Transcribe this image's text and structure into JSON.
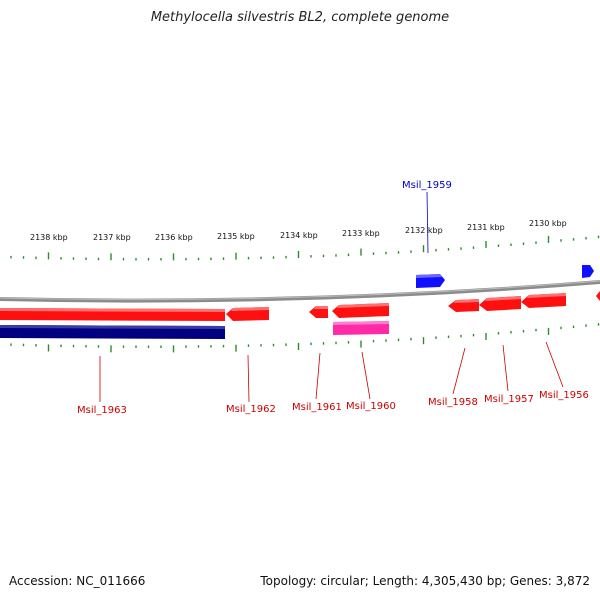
{
  "title": "Methylocella silvestris BL2, complete genome",
  "footer": {
    "accession": "Accession: NC_011666",
    "topology": "Topology: circular",
    "length": "Length: 4,305,430 bp",
    "genes": "Genes: 3,872"
  },
  "colors": {
    "backbone": "#8c8c8c",
    "tick": "#2e8b2e",
    "forward_gene": "#ff1010",
    "forward_gene_blue": "#1010ff",
    "reverse_pseudo": "#000080",
    "pink_feature": "#ff2aa8",
    "label_red": "#cc0000",
    "label_blue": "#0000cc"
  },
  "scale_labels": [
    "2138 kbp",
    "2137 kbp",
    "2136 kbp",
    "2135 kbp",
    "2134 kbp",
    "2133 kbp",
    "2132 kbp",
    "2131 kbp",
    "2130 kbp"
  ],
  "gene_labels": {
    "top": [
      "Msil_1959"
    ],
    "bottom": [
      "Msil_1963",
      "Msil_1962",
      "Msil_1961",
      "Msil_1960",
      "Msil_1958",
      "Msil_1957",
      "Msil_1956"
    ]
  }
}
